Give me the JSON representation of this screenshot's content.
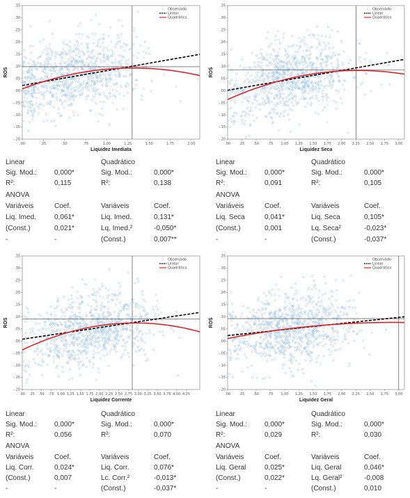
{
  "colors": {
    "observed": "#9cc3e6",
    "linear": "#000000",
    "quadratic": "#d9262b"
  },
  "legend": [
    "Observado",
    "Linear",
    "Quadrático"
  ],
  "chart_data": [
    {
      "type": "scatter",
      "xlabel": "Liquidez Imediata",
      "ylabel": "ROS",
      "xlim": [
        0,
        2.1
      ],
      "ylim": [
        -0.2,
        0.35
      ],
      "xticks": [
        ".00",
        ".25",
        ".50",
        ".75",
        "1,00",
        "1,25",
        "1,50",
        "1,75",
        "2,00"
      ],
      "yticks": [
        ".35",
        ".30",
        ".25",
        ".20",
        ".15",
        ".10",
        ".05",
        ".00",
        "-.05",
        "-.10",
        "-.15",
        "-.20"
      ],
      "reference_x": 1.3,
      "reference_y": 0.098,
      "linear": {
        "intercept": 0.021,
        "slope": 0.061
      },
      "quadratic": {
        "c": 0.007,
        "b": 0.131,
        "a": -0.05
      },
      "cloud": {
        "x_mean": 0.6,
        "x_sd": 0.42,
        "y_sd": 0.075,
        "n": 900,
        "seed": 11
      }
    },
    {
      "type": "scatter",
      "xlabel": "Liquidez Seca",
      "ylabel": "ROS",
      "xlim": [
        0,
        3.1
      ],
      "ylim": [
        -0.2,
        0.35
      ],
      "xticks": [
        ".00",
        ".25",
        ".50",
        ".75",
        "1,00",
        "1,25",
        "1,50",
        "1,75",
        "2,00",
        "2,25",
        "2,50",
        "2,75",
        "3,00"
      ],
      "yticks": [
        ".35",
        ".30",
        ".25",
        ".20",
        ".15",
        ".10",
        ".05",
        ".00",
        "-.05",
        "-.10",
        "-.15",
        "-.20"
      ],
      "reference_x": 2.25,
      "reference_y": 0.085,
      "linear": {
        "intercept": 0.001,
        "slope": 0.041
      },
      "quadratic": {
        "c": -0.037,
        "b": 0.105,
        "a": -0.023
      },
      "cloud": {
        "x_mean": 1.1,
        "x_sd": 0.55,
        "y_sd": 0.075,
        "n": 900,
        "seed": 23
      }
    },
    {
      "type": "scatter",
      "xlabel": "Liquidez Corrente",
      "ylabel": "ROS",
      "xlim": [
        0,
        4.6
      ],
      "ylim": [
        -0.2,
        0.35
      ],
      "xticks": [
        ".00",
        ".25",
        ".50",
        ".75",
        "1,00",
        "1,25",
        "1,50",
        "1,75",
        "2,00",
        "2,25",
        "2,50",
        "2,75",
        "3,00",
        "3,25",
        "3,50",
        "3,75",
        "4,00",
        "4,25"
      ],
      "yticks": [
        ".35",
        ".30",
        ".25",
        ".20",
        ".15",
        ".10",
        ".05",
        ".00",
        "-.05",
        "-.10",
        "-.15",
        "-.20"
      ],
      "reference_x": 2.85,
      "reference_y": 0.09,
      "linear": {
        "intercept": 0.007,
        "slope": 0.024
      },
      "quadratic": {
        "c": -0.037,
        "b": 0.076,
        "a": -0.013
      },
      "cloud": {
        "x_mean": 1.8,
        "x_sd": 0.8,
        "y_sd": 0.075,
        "n": 900,
        "seed": 37
      }
    },
    {
      "type": "scatter",
      "xlabel": "Liquidez Geral",
      "ylabel": "ROS",
      "xlim": [
        0,
        3.1
      ],
      "ylim": [
        -0.2,
        0.35
      ],
      "xticks": [
        ".00",
        ".25",
        ".50",
        ".75",
        "1,00",
        "1,25",
        "1,50",
        "1,75",
        "2,00",
        "2,25",
        "2,50",
        "2,75",
        "3,00"
      ],
      "yticks": [
        ".35",
        ".30",
        ".25",
        ".20",
        ".15",
        ".10",
        ".05",
        ".00",
        "-.05",
        "-.10",
        "-.15",
        "-.20"
      ],
      "reference_x": 3.0,
      "reference_y": 0.092,
      "linear": {
        "intercept": 0.022,
        "slope": 0.025
      },
      "quadratic": {
        "c": 0.01,
        "b": 0.046,
        "a": -0.008
      },
      "cloud": {
        "x_mean": 1.15,
        "x_sd": 0.55,
        "y_sd": 0.075,
        "n": 900,
        "seed": 53
      }
    }
  ],
  "stats": [
    {
      "linear_label": "Linear",
      "quadratic_label": "Quadrático",
      "r1": [
        "Sig. Mod.:",
        "0,000*",
        "Sig. Mod.:",
        "0,000*"
      ],
      "r2": [
        "R²:",
        "0,115",
        "R²:",
        "0,138"
      ],
      "anova": "ANOVA",
      "h": [
        "Variáveis",
        "Coef.",
        "Variáveis",
        "Coef."
      ],
      "v1": [
        "Liq. Imed.",
        "0,061*",
        "Liq. Imed.",
        "0,131*"
      ],
      "v2": [
        "(Const.)",
        "0,021*",
        "Lq. Imed.²",
        "-0,050*"
      ],
      "v3": [
        "-",
        "-",
        "(Const.)",
        "0,007**"
      ]
    },
    {
      "linear_label": "Linear",
      "quadratic_label": "Quadrático",
      "r1": [
        "Sig. Mod.:",
        "0,000*",
        "Sig. Mod.:",
        "0,000*"
      ],
      "r2": [
        "R²:",
        "0,091",
        "R²:",
        "0,105"
      ],
      "anova": "ANOVA",
      "h": [
        "Variáveis",
        "Coef.",
        "Variáveis",
        "Coef."
      ],
      "v1": [
        "Liq. Seca",
        "0,041*",
        "Liq. Seca",
        "0,105*"
      ],
      "v2": [
        "(Const.)",
        "0,001",
        "Lq. Seca²",
        "-0,023*"
      ],
      "v3": [
        "-",
        "-",
        "(Const.)",
        "-0,037*"
      ]
    },
    {
      "linear_label": "Linear",
      "quadratic_label": "Quadrático",
      "r1": [
        "Sig. Mod.:",
        "0,000*",
        "Sig. Mod.:",
        "0,000*"
      ],
      "r2": [
        "R²:",
        "0,056",
        "R²:",
        "0,070"
      ],
      "anova": "ANOVA",
      "h": [
        "Variáveis",
        "Coef.",
        "Variáveis",
        "Coef."
      ],
      "v1": [
        "Liq. Corr.",
        "0,024*",
        "Liq. Corr.",
        "0,076*"
      ],
      "v2": [
        "(Const.)",
        "0,007",
        "Lc. Corr.²",
        "-0,013*"
      ],
      "v3": [
        "-",
        "-",
        "(Const.)",
        "-0,037*"
      ]
    },
    {
      "linear_label": "Linear",
      "quadratic_label": "Quadrático",
      "r1": [
        "Sig. Mod.:",
        "0,000*",
        "Sig. Mod.:",
        "0,000*"
      ],
      "r2": [
        "R²:",
        "0,029",
        "R²:",
        "0,030"
      ],
      "anova": "ANOVA",
      "h": [
        "Variáveis",
        "Coef.",
        "Variáveis",
        "Coef."
      ],
      "v1": [
        "Liq. Geral",
        "0,025*",
        "Liq. Geral",
        "0,046*"
      ],
      "v2": [
        "(Const.)",
        "0,022*",
        "Lq. Geral²",
        "-0,008"
      ],
      "v3": [
        "-",
        "-",
        "(Const.)",
        "0,010"
      ]
    }
  ]
}
